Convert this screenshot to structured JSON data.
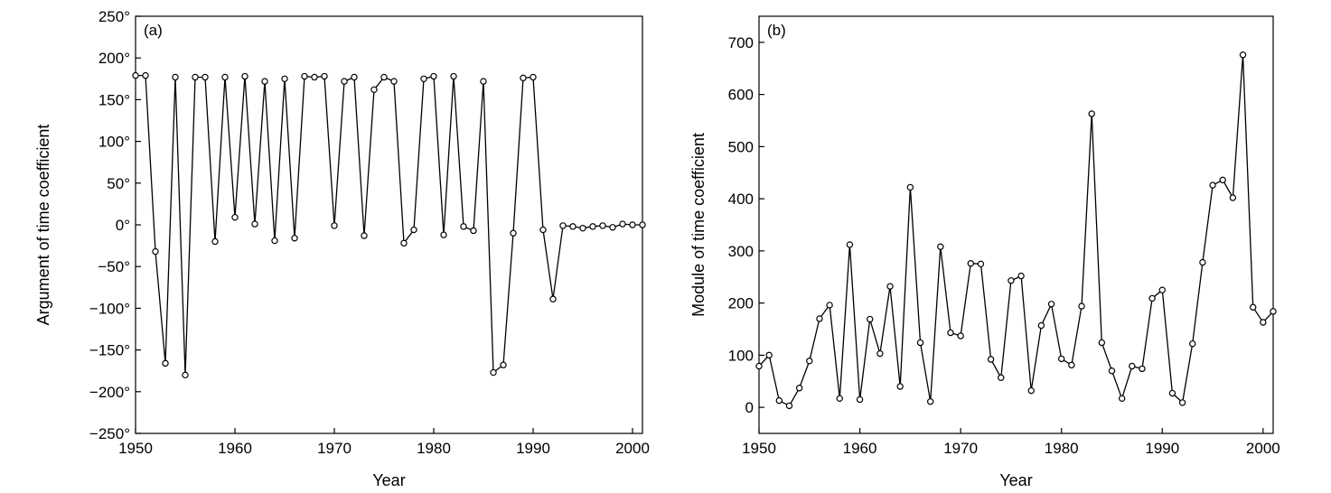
{
  "chart_data": [
    {
      "type": "line",
      "panel_label": "(a)",
      "xlabel": "Year",
      "ylabel": "Argument of time coefficient",
      "xlim": [
        1950,
        2001
      ],
      "ylim": [
        -250,
        250
      ],
      "xticks": [
        1950,
        1960,
        1970,
        1980,
        1990,
        2000
      ],
      "xtick_labels": [
        "1950",
        "1960",
        "1970",
        "1980",
        "1990",
        "2000"
      ],
      "yticks": [
        -250,
        -200,
        -150,
        -100,
        -50,
        0,
        50,
        100,
        150,
        200,
        250
      ],
      "ytick_labels": [
        "−250°",
        "−200°",
        "−150°",
        "−100°",
        "−50°",
        "0°",
        "50°",
        "100°",
        "150°",
        "200°",
        "250°"
      ],
      "grid": false,
      "series": [
        {
          "x": [
            1950,
            1951,
            1952,
            1953,
            1954,
            1955,
            1956,
            1957,
            1958,
            1959,
            1960,
            1961,
            1962,
            1963,
            1964,
            1965,
            1966,
            1967,
            1968,
            1969,
            1970,
            1971,
            1972,
            1973,
            1974,
            1975,
            1976,
            1977,
            1978,
            1979,
            1980,
            1981,
            1982,
            1983,
            1984,
            1985,
            1986,
            1987,
            1988,
            1989,
            1990,
            1991,
            1992,
            1993,
            1994,
            1995,
            1996,
            1997,
            1998,
            1999,
            2000,
            2001
          ],
          "values": [
            179,
            179,
            -32,
            -166,
            177,
            -180,
            177,
            177,
            -20,
            177,
            9,
            178,
            1,
            172,
            -19,
            175,
            -16,
            178,
            177,
            178,
            -1,
            172,
            177,
            -13,
            162,
            177,
            172,
            -22,
            -6,
            175,
            178,
            -12,
            178,
            -2,
            -7,
            172,
            -177,
            -168,
            -10,
            176,
            177,
            -6,
            -89,
            -1,
            -2,
            -4,
            -2,
            -1,
            -3,
            1,
            0,
            0
          ]
        }
      ]
    },
    {
      "type": "line",
      "panel_label": "(b)",
      "xlabel": "Year",
      "ylabel": "Module of time coefficient",
      "xlim": [
        1950,
        2001
      ],
      "ylim": [
        -50,
        750
      ],
      "xticks": [
        1950,
        1960,
        1970,
        1980,
        1990,
        2000
      ],
      "xtick_labels": [
        "1950",
        "1960",
        "1970",
        "1980",
        "1990",
        "2000"
      ],
      "yticks": [
        0,
        100,
        200,
        300,
        400,
        500,
        600,
        700
      ],
      "ytick_labels": [
        "0",
        "100",
        "200",
        "300",
        "400",
        "500",
        "600",
        "700"
      ],
      "grid": false,
      "series": [
        {
          "x": [
            1950,
            1951,
            1952,
            1953,
            1954,
            1955,
            1956,
            1957,
            1958,
            1959,
            1960,
            1961,
            1962,
            1963,
            1964,
            1965,
            1966,
            1967,
            1968,
            1969,
            1970,
            1971,
            1972,
            1973,
            1974,
            1975,
            1976,
            1977,
            1978,
            1979,
            1980,
            1981,
            1982,
            1983,
            1984,
            1985,
            1986,
            1987,
            1988,
            1989,
            1990,
            1991,
            1992,
            1993,
            1994,
            1995,
            1996,
            1997,
            1998,
            1999,
            2000,
            2001
          ],
          "values": [
            79,
            100,
            13,
            3,
            37,
            89,
            170,
            196,
            17,
            312,
            15,
            169,
            103,
            232,
            40,
            422,
            124,
            11,
            308,
            143,
            137,
            276,
            275,
            92,
            57,
            243,
            252,
            32,
            157,
            198,
            93,
            81,
            194,
            563,
            124,
            70,
            17,
            79,
            74,
            209,
            225,
            27,
            9,
            122,
            278,
            426,
            436,
            402,
            676,
            192,
            163,
            184
          ]
        }
      ]
    }
  ]
}
